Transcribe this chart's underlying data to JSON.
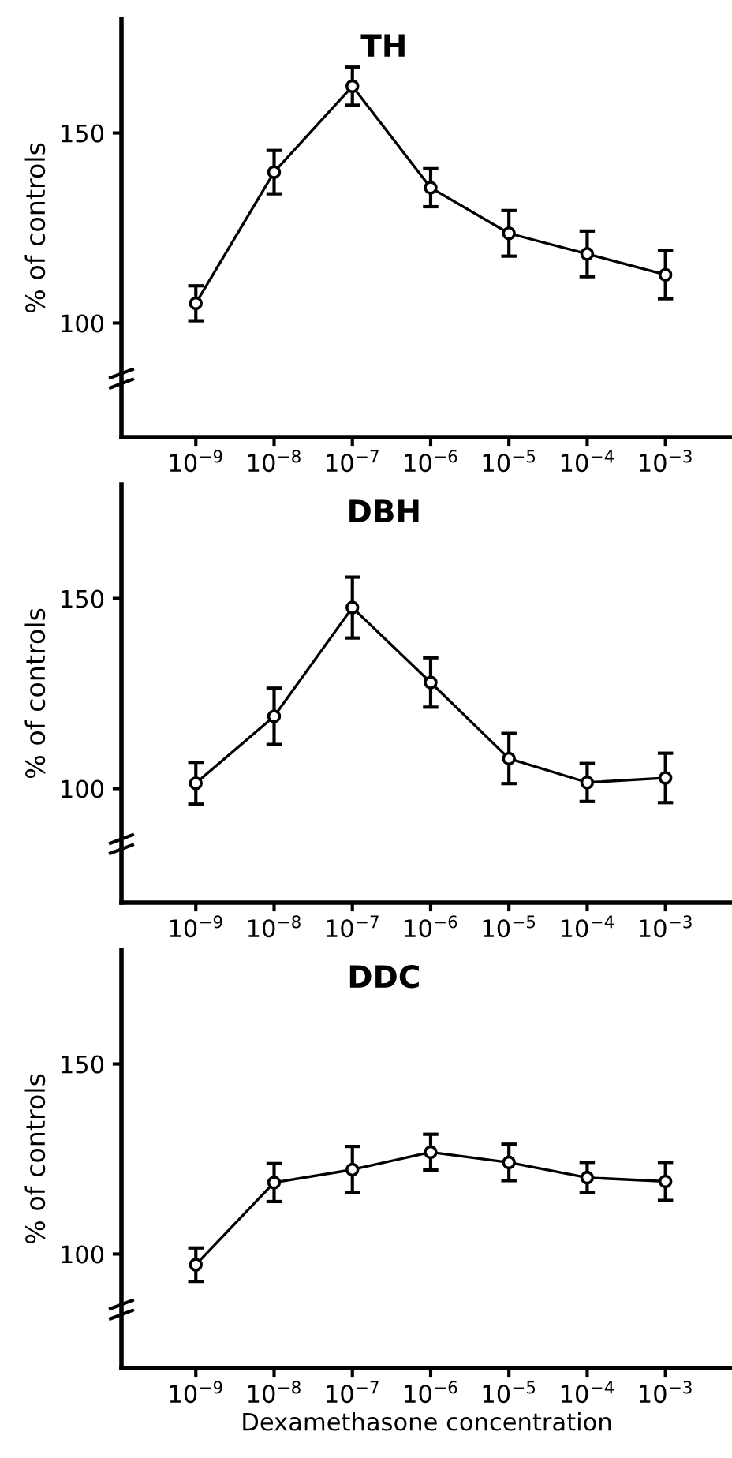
{
  "chart_data": [
    {
      "type": "line",
      "title": "TH",
      "ylabel": "% of controls",
      "categories": [
        "10$^{−9}$",
        "10$^{−8}$",
        "10$^{−7}$",
        "10$^{−6}$",
        "10$^{−5}$",
        "10$^{−4}$",
        "10$^{−3}$"
      ],
      "series": [
        {
          "color": "#000000",
          "values": [
            105.2,
            139.7,
            162.3,
            135.6,
            123.6,
            118.2,
            112.7
          ],
          "errors": [
            4.6,
            5.7,
            5,
            5,
            6,
            6,
            6.3
          ]
        }
      ],
      "ylim": [
        70,
        180
      ],
      "yticks": [
        100,
        150
      ],
      "marker": "circle",
      "line_style": "solid",
      "grid": false,
      "legend": false
    },
    {
      "type": "line",
      "title": "DBH",
      "ylabel": "% of controls",
      "categories": [
        "10$^{−9}$",
        "10$^{−8}$",
        "10$^{−7}$",
        "10$^{−6}$",
        "10$^{−5}$",
        "10$^{−4}$",
        "10$^{−3}$"
      ],
      "series": [
        {
          "color": "#000000",
          "values": [
            101.4,
            119.0,
            147.6,
            127.9,
            107.9,
            101.6,
            102.8
          ],
          "errors": [
            5.5,
            7.4,
            8,
            6.5,
            6.6,
            5,
            6.5
          ]
        }
      ],
      "ylim": [
        70,
        180
      ],
      "yticks": [
        100,
        150
      ],
      "marker": "circle",
      "line_style": "solid",
      "grid": false,
      "legend": false
    },
    {
      "type": "line",
      "title": "DDC",
      "ylabel": "% of controls",
      "xlabel": "Dexamethasone concentration",
      "categories": [
        "10$^{−9}$",
        "10$^{−8}$",
        "10$^{−7}$",
        "10$^{−6}$",
        "10$^{−5}$",
        "10$^{−4}$",
        "10$^{−3}$"
      ],
      "series": [
        {
          "color": "#000000",
          "values": [
            97.2,
            118.8,
            122.2,
            126.8,
            124.1,
            120.1,
            119.1
          ],
          "errors": [
            4.4,
            5,
            6.1,
            4.7,
            4.8,
            4,
            5
          ]
        }
      ],
      "ylim": [
        70,
        180
      ],
      "yticks": [
        100,
        150
      ],
      "marker": "circle",
      "line_style": "solid",
      "grid": false,
      "legend": false
    }
  ]
}
